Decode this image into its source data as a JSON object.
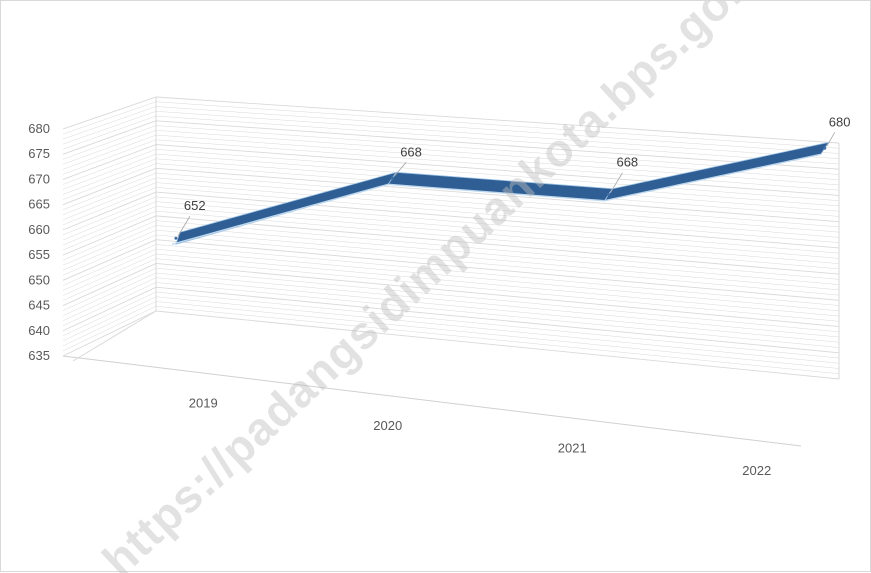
{
  "chart_data": {
    "type": "line",
    "style": "3d-ribbon",
    "categories": [
      "2019",
      "2020",
      "2021",
      "2022"
    ],
    "series": [
      {
        "values": [
          652,
          668,
          668,
          680
        ],
        "color": "#3f6fa3"
      }
    ],
    "data_labels": [
      "652",
      "668",
      "668",
      "680"
    ],
    "yticks": [
      "635",
      "640",
      "645",
      "650",
      "655",
      "660",
      "665",
      "670",
      "675",
      "680"
    ],
    "ylim": [
      635,
      680
    ],
    "ystep": 5,
    "grid": true,
    "legend": "none",
    "title": "",
    "xlabel": "",
    "ylabel": ""
  },
  "watermark": {
    "text": "https://padangsidimpuankota.bps.go.id"
  },
  "colors": {
    "ribbon_top": "#3f6fa3",
    "ribbon_front": "#2e5e93",
    "grid": "#d9d9d9",
    "text": "#595959"
  }
}
